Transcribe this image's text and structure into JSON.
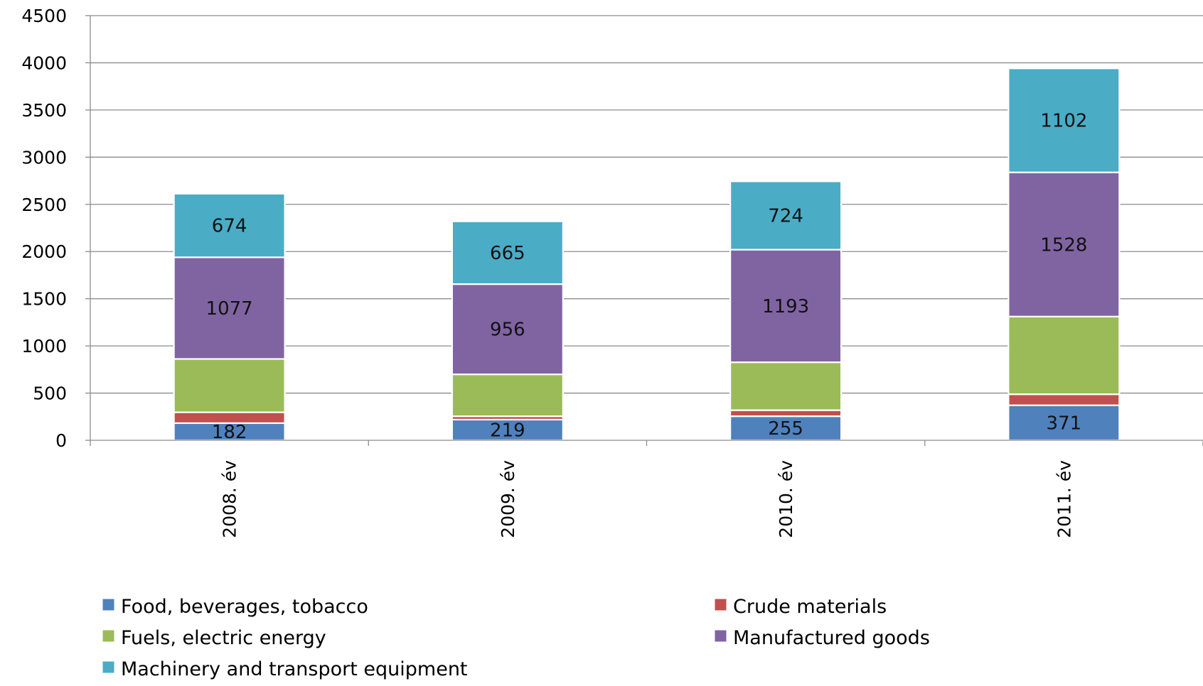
{
  "chart_data": {
    "type": "bar",
    "stacked": true,
    "categories": [
      "2008. év",
      "2009. év",
      "2010. év",
      "2011. év"
    ],
    "series": [
      {
        "name": "Food, beverages, tobacco",
        "color": "#4f81bd",
        "values": [
          182,
          219,
          255,
          371
        ],
        "show_labels": true
      },
      {
        "name": "Crude materials",
        "color": "#c0504d",
        "values": [
          115,
          36,
          64,
          117
        ],
        "show_labels": false
      },
      {
        "name": "Fuels, electric energy",
        "color": "#9bbb59",
        "values": [
          565,
          444,
          508,
          823
        ],
        "show_labels": false
      },
      {
        "name": "Manufactured goods",
        "color": "#8064a2",
        "values": [
          1077,
          956,
          1193,
          1528
        ],
        "show_labels": true
      },
      {
        "name": "Machinery and transport equipment",
        "color": "#4bacc6",
        "values": [
          674,
          665,
          724,
          1102
        ],
        "show_labels": true
      }
    ],
    "ylim": [
      0,
      4500
    ],
    "yticks": [
      0,
      500,
      1000,
      1500,
      2000,
      2500,
      3000,
      3500,
      4000,
      4500
    ],
    "title": "",
    "xlabel": "",
    "ylabel": "",
    "grid": true,
    "legend_position": "bottom"
  }
}
